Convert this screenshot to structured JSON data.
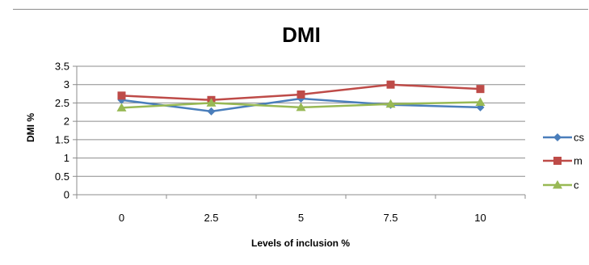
{
  "chart_data": {
    "type": "line",
    "title": "DMI",
    "xlabel": "Levels of inclusion %",
    "ylabel": "DMI %",
    "categories": [
      "0",
      "2.5",
      "5",
      "7.5",
      "10"
    ],
    "ylim": [
      0,
      3.5
    ],
    "yticks": [
      "0",
      "0.5",
      "1",
      "1.5",
      "2",
      "2.5",
      "3",
      "3.5"
    ],
    "grid": true,
    "legend_position": "right",
    "series": [
      {
        "name": "cs",
        "values": [
          2.58,
          2.27,
          2.62,
          2.45,
          2.38
        ],
        "color": "#4a7ebb",
        "marker": "diamond"
      },
      {
        "name": "m",
        "values": [
          2.7,
          2.58,
          2.73,
          3.0,
          2.88
        ],
        "color": "#be4b48",
        "marker": "square"
      },
      {
        "name": "c",
        "values": [
          2.37,
          2.5,
          2.38,
          2.47,
          2.52
        ],
        "color": "#98b954",
        "marker": "triangle"
      }
    ]
  }
}
